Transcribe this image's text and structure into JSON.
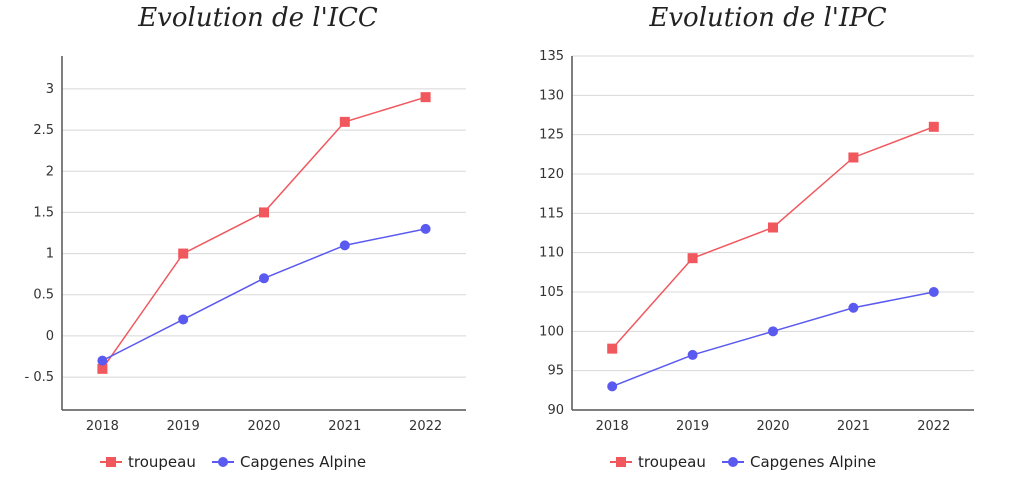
{
  "colors": {
    "troupeau": "#f0585e",
    "capgenes": "#5a5af0"
  },
  "chart_data": [
    {
      "type": "line",
      "title": "Evolution de l'ICC",
      "categories": [
        "2018",
        "2019",
        "2020",
        "2021",
        "2022"
      ],
      "ylim": [
        -0.9,
        3.4
      ],
      "yticks": [
        -0.5,
        0,
        0.5,
        1,
        1.5,
        2,
        2.5,
        3
      ],
      "ytick_labels": [
        "- 0.5",
        "0",
        "0.5",
        "1",
        "1.5",
        "2",
        "2.5",
        "3"
      ],
      "grid": true,
      "legend": "bottom",
      "series": [
        {
          "name": "troupeau",
          "marker": "square",
          "values": [
            -0.4,
            1.0,
            1.5,
            2.6,
            2.9
          ]
        },
        {
          "name": "Capgenes Alpine",
          "marker": "circle",
          "values": [
            -0.3,
            0.2,
            0.7,
            1.1,
            1.3
          ]
        }
      ]
    },
    {
      "type": "line",
      "title": "Evolution de l'IPC",
      "categories": [
        "2018",
        "2019",
        "2020",
        "2021",
        "2022"
      ],
      "ylim": [
        90,
        135
      ],
      "yticks": [
        90,
        95,
        100,
        105,
        110,
        115,
        120,
        125,
        130,
        135
      ],
      "ytick_labels": [
        "90",
        "95",
        "100",
        "105",
        "110",
        "115",
        "120",
        "125",
        "130",
        "135"
      ],
      "grid": true,
      "legend": "bottom",
      "series": [
        {
          "name": "troupeau",
          "marker": "square",
          "values": [
            97.8,
            109.3,
            113.2,
            122.1,
            126.0
          ]
        },
        {
          "name": "Capgenes Alpine",
          "marker": "circle",
          "values": [
            93.0,
            97.0,
            100.0,
            103.0,
            105.0
          ]
        }
      ]
    }
  ]
}
